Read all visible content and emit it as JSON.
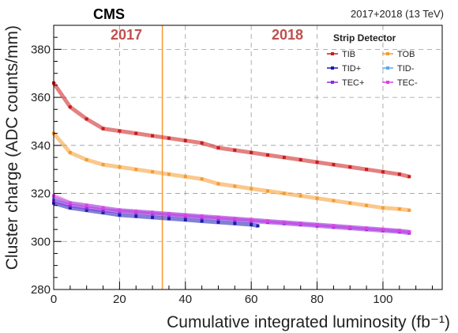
{
  "chart_data": {
    "type": "scatter",
    "experiment": "CMS",
    "energy_label": "2017+2018 (13 TeV)",
    "xlabel": "Cumulative integrated luminosity (fb⁻¹)",
    "ylabel": "Cluster charge (ADC counts/mm)",
    "xlim": [
      0,
      118
    ],
    "ylim": [
      280,
      390
    ],
    "x_ticks": [
      0,
      20,
      40,
      60,
      80,
      100
    ],
    "y_ticks": [
      280,
      300,
      320,
      340,
      360,
      380
    ],
    "grid": true,
    "legend": {
      "title": "Strip Detector",
      "position": "top-right"
    },
    "annotations": [
      {
        "text": "2017",
        "x": 18,
        "y": 385
      },
      {
        "text": "2018",
        "x": 72,
        "y": 385
      }
    ],
    "vertical_markers": [
      {
        "x": 33,
        "color": "#f59b2f"
      }
    ],
    "series": [
      {
        "name": "TIB",
        "color": "#cc1a1a",
        "x": [
          0,
          5,
          10,
          15,
          20,
          25,
          30,
          35,
          40,
          45,
          50,
          55,
          60,
          65,
          70,
          75,
          80,
          85,
          90,
          95,
          100,
          105,
          108
        ],
        "y": [
          366,
          356,
          351,
          347,
          346,
          345,
          344,
          343,
          342,
          341,
          339,
          338,
          337,
          336,
          335,
          334,
          333,
          332,
          331,
          330,
          329,
          328,
          327
        ]
      },
      {
        "name": "TOB",
        "color": "#f59b2f",
        "x": [
          0,
          5,
          10,
          15,
          20,
          25,
          30,
          35,
          40,
          45,
          50,
          55,
          60,
          65,
          70,
          75,
          80,
          85,
          90,
          95,
          100,
          105,
          108
        ],
        "y": [
          345,
          337,
          334,
          332,
          331,
          330,
          329,
          328,
          327,
          326,
          324,
          323,
          322,
          321,
          320,
          319,
          318,
          317,
          316,
          315,
          314,
          313.5,
          313
        ]
      },
      {
        "name": "TID+",
        "color": "#1a1ab3",
        "x": [
          0,
          5,
          10,
          15,
          20,
          25,
          30,
          35,
          40,
          45,
          50,
          55,
          60,
          62
        ],
        "y": [
          316,
          314,
          313,
          312,
          311,
          310.5,
          310,
          309.5,
          309,
          308.5,
          308,
          307.5,
          307,
          306.5
        ]
      },
      {
        "name": "TID-",
        "color": "#5aa8f0",
        "x": [
          0,
          5,
          10,
          15,
          20,
          25,
          30,
          35,
          40,
          45,
          50,
          55,
          60,
          65,
          70,
          75,
          80,
          85,
          90,
          95,
          100,
          105,
          108
        ],
        "y": [
          318,
          316,
          315,
          314,
          313,
          312.5,
          312,
          311.5,
          311,
          310.5,
          310,
          309.5,
          309,
          308.5,
          308,
          307.5,
          307,
          306.5,
          306,
          305.5,
          305,
          304.5,
          304
        ]
      },
      {
        "name": "TEC+",
        "color": "#8a2be2",
        "x": [
          0,
          5,
          10,
          15,
          20,
          25,
          30,
          35,
          40,
          45,
          50,
          55,
          60,
          65,
          70,
          75,
          80,
          85,
          90,
          95,
          100,
          105,
          108
        ],
        "y": [
          317,
          315,
          314,
          313,
          312.5,
          312,
          311.5,
          311,
          310.5,
          310,
          309.5,
          309,
          308.5,
          308,
          307.5,
          307,
          306.5,
          306,
          305.5,
          305,
          304.5,
          304,
          303.5
        ]
      },
      {
        "name": "TEC-",
        "color": "#e040e0",
        "x": [
          0,
          5,
          10,
          15,
          20,
          25,
          30,
          35,
          40,
          45,
          50,
          55,
          60,
          65,
          70,
          75,
          80,
          85,
          90,
          95,
          100,
          105,
          108
        ],
        "y": [
          319,
          316,
          315,
          314,
          313,
          312.5,
          312,
          311.5,
          311,
          310.5,
          310,
          309.5,
          309,
          308.5,
          308,
          307.5,
          307,
          306.5,
          306,
          305.5,
          305,
          304.5,
          304
        ]
      }
    ]
  }
}
